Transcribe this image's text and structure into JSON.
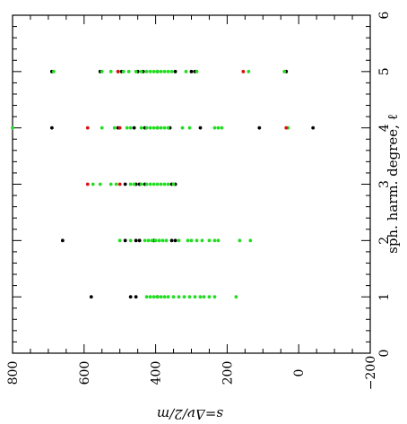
{
  "chart_data": {
    "type": "scatter",
    "orientation": "rotated-90",
    "title": "",
    "xlabel": "sph. harm. degree, ℓ",
    "ylabel": "s=Δν/2/m",
    "xlim": [
      0,
      6
    ],
    "ylim": [
      -200,
      800
    ],
    "x_ticks": [
      "0",
      "1",
      "2",
      "3",
      "4",
      "5",
      "6"
    ],
    "y_ticks": [
      "800",
      "600",
      "400",
      "200",
      "0",
      "−200"
    ],
    "grid": false,
    "legend": "none",
    "colors": {
      "black": "#000000",
      "green": "#22dd22",
      "red": "#e01010"
    },
    "series": [
      {
        "color": "black",
        "points": [
          [
            1,
            580
          ],
          [
            1,
            470
          ],
          [
            1,
            455
          ],
          [
            1,
            395
          ],
          [
            2,
            660
          ],
          [
            2,
            485
          ],
          [
            2,
            455
          ],
          [
            2,
            445
          ],
          [
            2,
            405
          ],
          [
            2,
            355
          ],
          [
            2,
            345
          ],
          [
            3,
            485
          ],
          [
            3,
            455
          ],
          [
            3,
            445
          ],
          [
            3,
            430
          ],
          [
            3,
            355
          ],
          [
            3,
            345
          ],
          [
            4,
            690
          ],
          [
            4,
            505
          ],
          [
            4,
            460
          ],
          [
            4,
            430
          ],
          [
            4,
            395
          ],
          [
            4,
            360
          ],
          [
            4,
            275
          ],
          [
            4,
            110
          ],
          [
            4,
            -40
          ],
          [
            5,
            690
          ],
          [
            5,
            555
          ],
          [
            5,
            505
          ],
          [
            5,
            495
          ],
          [
            5,
            450
          ],
          [
            5,
            435
          ],
          [
            5,
            395
          ],
          [
            5,
            345
          ],
          [
            5,
            300
          ],
          [
            5,
            290
          ],
          [
            5,
            35
          ]
        ]
      },
      {
        "color": "green",
        "points": [
          [
            1,
            425
          ],
          [
            1,
            415
          ],
          [
            1,
            405
          ],
          [
            1,
            395
          ],
          [
            1,
            385
          ],
          [
            1,
            375
          ],
          [
            1,
            365
          ],
          [
            1,
            350
          ],
          [
            1,
            335
          ],
          [
            1,
            320
          ],
          [
            1,
            305
          ],
          [
            1,
            290
          ],
          [
            1,
            275
          ],
          [
            1,
            265
          ],
          [
            1,
            250
          ],
          [
            1,
            235
          ],
          [
            1,
            175
          ],
          [
            2,
            500
          ],
          [
            2,
            470
          ],
          [
            2,
            430
          ],
          [
            2,
            420
          ],
          [
            2,
            410
          ],
          [
            2,
            400
          ],
          [
            2,
            390
          ],
          [
            2,
            380
          ],
          [
            2,
            370
          ],
          [
            2,
            335
          ],
          [
            2,
            310
          ],
          [
            2,
            300
          ],
          [
            2,
            285
          ],
          [
            2,
            270
          ],
          [
            2,
            250
          ],
          [
            2,
            235
          ],
          [
            2,
            225
          ],
          [
            2,
            165
          ],
          [
            2,
            135
          ],
          [
            3,
            575
          ],
          [
            3,
            555
          ],
          [
            3,
            525
          ],
          [
            3,
            510
          ],
          [
            3,
            470
          ],
          [
            3,
            460
          ],
          [
            3,
            440
          ],
          [
            3,
            425
          ],
          [
            3,
            415
          ],
          [
            3,
            405
          ],
          [
            3,
            395
          ],
          [
            3,
            385
          ],
          [
            3,
            375
          ],
          [
            3,
            365
          ],
          [
            3,
            350
          ],
          [
            4,
            800
          ],
          [
            4,
            550
          ],
          [
            4,
            515
          ],
          [
            4,
            480
          ],
          [
            4,
            470
          ],
          [
            4,
            440
          ],
          [
            4,
            425
          ],
          [
            4,
            415
          ],
          [
            4,
            405
          ],
          [
            4,
            395
          ],
          [
            4,
            385
          ],
          [
            4,
            375
          ],
          [
            4,
            365
          ],
          [
            4,
            325
          ],
          [
            4,
            305
          ],
          [
            4,
            235
          ],
          [
            4,
            225
          ],
          [
            4,
            215
          ],
          [
            4,
            30
          ],
          [
            5,
            685
          ],
          [
            5,
            550
          ],
          [
            5,
            525
          ],
          [
            5,
            490
          ],
          [
            5,
            475
          ],
          [
            5,
            455
          ],
          [
            5,
            440
          ],
          [
            5,
            425
          ],
          [
            5,
            415
          ],
          [
            5,
            405
          ],
          [
            5,
            395
          ],
          [
            5,
            385
          ],
          [
            5,
            375
          ],
          [
            5,
            365
          ],
          [
            5,
            355
          ],
          [
            5,
            315
          ],
          [
            5,
            285
          ],
          [
            5,
            140
          ],
          [
            5,
            40
          ]
        ]
      },
      {
        "color": "red",
        "points": [
          [
            3,
            590
          ],
          [
            3,
            500
          ],
          [
            4,
            590
          ],
          [
            4,
            500
          ],
          [
            4,
            35
          ],
          [
            5,
            505
          ],
          [
            5,
            155
          ]
        ]
      }
    ]
  }
}
